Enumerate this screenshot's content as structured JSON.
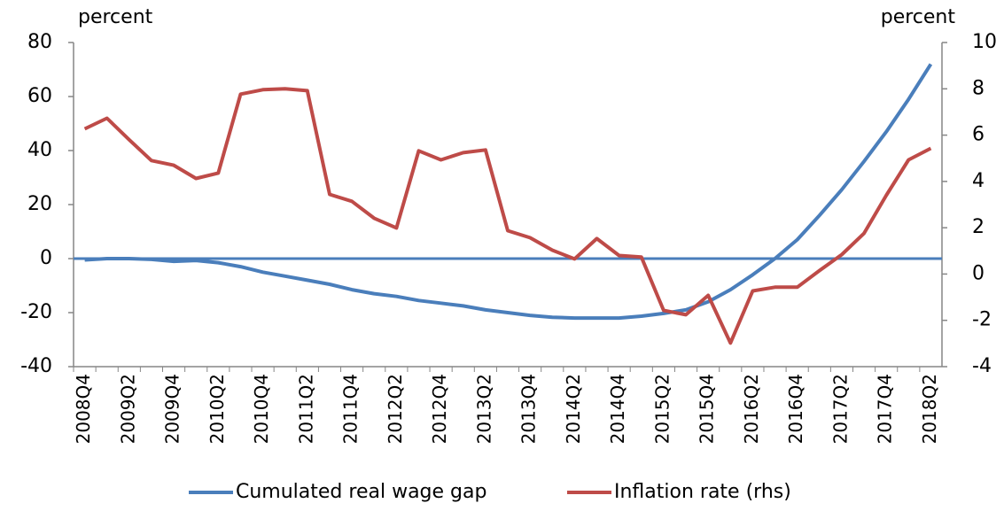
{
  "chart_data": {
    "type": "line",
    "ylabel": "percent",
    "y2label": "percent",
    "categories": [
      "2008Q4",
      null,
      "2009Q2",
      null,
      "2009Q4",
      null,
      "2010Q2",
      null,
      "2010Q4",
      null,
      "2011Q2",
      null,
      "2011Q4",
      null,
      "2012Q2",
      null,
      "2012Q4",
      null,
      "2013Q2",
      null,
      "2013Q4",
      null,
      "2014Q2",
      null,
      "2014Q4",
      null,
      "2015Q2",
      null,
      "2015Q4",
      null,
      "2016Q2",
      null,
      "2016Q4",
      null,
      "2017Q2",
      null,
      "2017Q4",
      null,
      "2018Q2"
    ],
    "series": [
      {
        "name": "Cumulated real wage gap",
        "color": "#4a7ebb",
        "values": [
          -0.5,
          0,
          0,
          -0.3,
          -1,
          -0.7,
          -1.5,
          -3,
          -5,
          -6.5,
          -8,
          -9.5,
          -11.5,
          -13,
          -14,
          -15.5,
          -16.5,
          -17.5,
          -19,
          -20,
          -21,
          -21.7,
          -22,
          -22,
          -22,
          -21.3,
          -20.3,
          -19,
          -16,
          -11.5,
          -6,
          0,
          7,
          16,
          25.5,
          36,
          47,
          59,
          72
        ]
      },
      {
        "name": "Inflation rate (rhs)",
        "color": "#be4b48",
        "axis": "y2",
        "values": [
          6.27,
          6.73,
          5.8,
          4.9,
          4.7,
          4.13,
          4.36,
          7.77,
          7.96,
          8.0,
          7.92,
          3.44,
          3.14,
          2.41,
          1.99,
          5.32,
          4.93,
          5.24,
          5.36,
          1.87,
          1.57,
          1.03,
          0.65,
          1.53,
          0.8,
          0.73,
          -1.57,
          -1.76,
          -0.92,
          -2.98,
          -0.73,
          -0.57,
          -0.57,
          0.15,
          0.84,
          1.76,
          3.4,
          4.93,
          5.43
        ]
      }
    ],
    "ylim": [
      -40,
      80
    ],
    "yticks": [
      -40,
      -20,
      0,
      20,
      40,
      60,
      80
    ],
    "y2lim": [
      -4,
      10
    ],
    "y2ticks": [
      -4,
      -2,
      0,
      2,
      4,
      6,
      8,
      10
    ],
    "legend": "bottom"
  }
}
